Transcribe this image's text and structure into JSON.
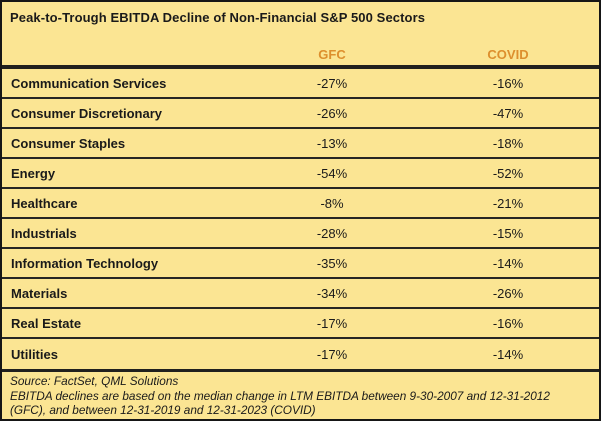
{
  "title": "Peak-to-Trough EBITDA Decline of Non-Financial S&P 500 Sectors",
  "columns": {
    "gfc_label": "GFC",
    "covid_label": "COVID"
  },
  "chart_data": {
    "type": "table",
    "title": "Peak-to-Trough EBITDA Decline of Non-Financial S&P 500 Sectors",
    "unit": "%",
    "categories": [
      "Communication Services",
      "Consumer Discretionary",
      "Consumer Staples",
      "Energy",
      "Healthcare",
      "Industrials",
      "Information Technology",
      "Materials",
      "Real Estate",
      "Utilities"
    ],
    "series": [
      {
        "name": "GFC",
        "values": [
          -27,
          -26,
          -13,
          -54,
          -8,
          -28,
          -35,
          -34,
          -17,
          -17
        ]
      },
      {
        "name": "COVID",
        "values": [
          -16,
          -47,
          -18,
          -52,
          -21,
          -15,
          -14,
          -26,
          -16,
          -14
        ]
      }
    ]
  },
  "footer": {
    "source": "Source: FactSet, QML Solutions",
    "note": "EBITDA declines are based on the median change in LTM EBITDA between 9-30-2007 and 12-31-2012 (GFC), and between 12-31-2019 and 12-31-2023 (COVID)"
  },
  "colors": {
    "background": "#FBE593",
    "header_text": "#DD8F2D",
    "body_text": "#1A1A1A",
    "border": "#20201E"
  }
}
